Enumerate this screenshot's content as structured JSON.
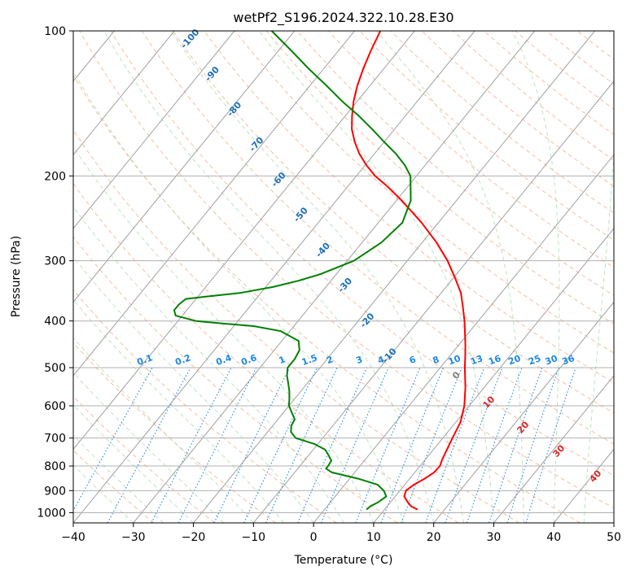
{
  "chart_data": {
    "type": "line",
    "title": "wetPf2_S196.2024.322.10.28.E30",
    "xlabel": "Temperature (°C)",
    "ylabel": "Pressure (hPa)",
    "xlim": [
      -40,
      50
    ],
    "ylim": [
      1050,
      100
    ],
    "y_scale": "log",
    "x_ticks": [
      -40,
      -30,
      -20,
      -10,
      0,
      10,
      20,
      30,
      40,
      50
    ],
    "y_ticks": [
      100,
      200,
      300,
      400,
      500,
      600,
      700,
      800,
      900,
      1000
    ],
    "grid": true,
    "skew": true,
    "series": [
      {
        "color": "#ff0000",
        "pressure": [
          985,
          970,
          950,
          925,
          900,
          875,
          850,
          825,
          800,
          775,
          750,
          700,
          650,
          600,
          550,
          500,
          475,
          450,
          425,
          400,
          375,
          350,
          325,
          300,
          275,
          250,
          225,
          210,
          200,
          190,
          180,
          170,
          160,
          150,
          140,
          130,
          120,
          110,
          100
        ],
        "values": [
          15.5,
          14.0,
          12.8,
          11.5,
          11.0,
          11.5,
          12.5,
          13.2,
          13.3,
          12.8,
          12.4,
          11.6,
          10.8,
          9.2,
          6.9,
          4.1,
          2.7,
          1.2,
          -0.5,
          -2.3,
          -4.4,
          -6.7,
          -9.8,
          -13.3,
          -17.6,
          -22.8,
          -29.1,
          -33.5,
          -36.9,
          -39.8,
          -42.5,
          -44.9,
          -47.1,
          -48.9,
          -50.6,
          -52.1,
          -53.4,
          -54.6,
          -55.7
        ]
      },
      {
        "color": "#008000",
        "pressure": [
          985,
          970,
          950,
          925,
          900,
          875,
          850,
          825,
          810,
          800,
          780,
          760,
          740,
          720,
          700,
          680,
          660,
          640,
          620,
          600,
          580,
          560,
          540,
          520,
          500,
          480,
          460,
          440,
          420,
          410,
          405,
          400,
          390,
          380,
          370,
          360,
          355,
          350,
          340,
          330,
          320,
          300,
          275,
          250,
          225,
          200,
          190,
          180,
          170,
          160,
          150,
          140,
          130,
          120,
          110,
          100
        ],
        "values": [
          7.0,
          7.2,
          8.0,
          8.5,
          7.3,
          5.5,
          1.4,
          -3.8,
          -5.3,
          -5.3,
          -5.5,
          -6.7,
          -8.0,
          -10.6,
          -14.5,
          -16.1,
          -16.9,
          -17.2,
          -18.6,
          -20.0,
          -20.9,
          -21.9,
          -23.1,
          -24.4,
          -25.4,
          -25.4,
          -25.8,
          -27.2,
          -31.5,
          -36.7,
          -42.1,
          -47.0,
          -51.1,
          -52.1,
          -52.1,
          -51.7,
          -47.8,
          -43.5,
          -38.8,
          -35.4,
          -32.7,
          -28.9,
          -26.8,
          -26.0,
          -27.6,
          -31.0,
          -33.4,
          -36.4,
          -40.0,
          -43.7,
          -47.8,
          -52.5,
          -57.2,
          -62.4,
          -67.8,
          -73.8
        ]
      }
    ],
    "dry_adiabat_labels": [
      "-100",
      "-90",
      "-80",
      "-70",
      "-60",
      "-50",
      "-40",
      "-30",
      "-20",
      "-10"
    ],
    "mixing_ratio_labels": [
      "0.1",
      "0.2",
      "0.4",
      "0.6",
      "1",
      "1.5",
      "2",
      "3",
      "4",
      "6",
      "8",
      "10",
      "13",
      "16",
      "20",
      "25",
      "30",
      "36"
    ],
    "moist_adiabat_labels": [
      "0",
      "10",
      "20",
      "30",
      "40"
    ],
    "colors": {
      "temperature": "#ff0000",
      "dewpoint": "#008000",
      "isotherm": "#a0a0a0",
      "dry_adiabat": "#f4a582",
      "moist_adiabat": "#b2dfb2",
      "mixing_ratio": "#1e88e5",
      "dry_adiabat_label": "#1f6fb4",
      "moist_adiabat_label": "#d62728",
      "moist_zero_label": "#808080",
      "grid": "#b0b0b0"
    }
  }
}
